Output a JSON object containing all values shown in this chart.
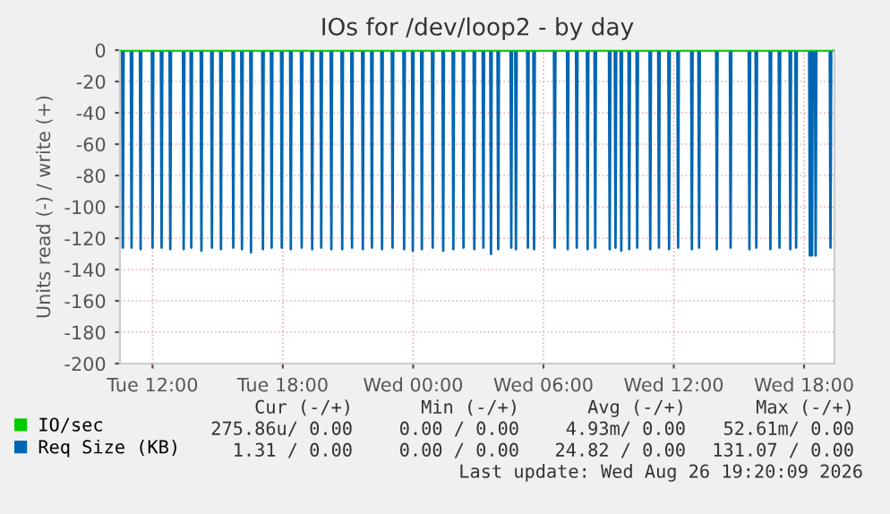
{
  "chart_data": {
    "type": "line",
    "title": "IOs for /dev/loop2 - by day",
    "ylabel": "Units read (-) / write (+)",
    "xlim": [
      "2026-08-25T10:30",
      "2026-08-26T19:24"
    ],
    "xticks": [
      {
        "value": "2026-08-25T12:00",
        "label": "Tue 12:00"
      },
      {
        "value": "2026-08-25T18:00",
        "label": "Tue 18:00"
      },
      {
        "value": "2026-08-26T00:00",
        "label": "Wed 00:00"
      },
      {
        "value": "2026-08-26T06:00",
        "label": "Wed 06:00"
      },
      {
        "value": "2026-08-26T12:00",
        "label": "Wed 12:00"
      },
      {
        "value": "2026-08-26T18:00",
        "label": "Wed 18:00"
      }
    ],
    "ylim": [
      -200,
      0
    ],
    "yticks": [
      -200,
      -180,
      -160,
      -140,
      -120,
      -100,
      -80,
      -60,
      -40,
      -20,
      0
    ],
    "grid": true,
    "legend": "bottom left",
    "marker": "none",
    "line_style": "solid",
    "series": [
      {
        "name": "IO/sec",
        "color": "#00cc00",
        "x": [
          "2026-08-25T10:30",
          "2026-08-26T19:24"
        ],
        "values": [
          0,
          0
        ]
      },
      {
        "name": "Req Size (KB)",
        "color": "#0066b3",
        "x": [
          "2026-08-25T10:36",
          "2026-08-25T10:38",
          "2026-08-25T10:40",
          "2026-08-25T11:00",
          "2026-08-25T11:02",
          "2026-08-25T11:04",
          "2026-08-25T11:25",
          "2026-08-25T11:27",
          "2026-08-25T11:29",
          "2026-08-25T11:58",
          "2026-08-25T12:00",
          "2026-08-25T12:02",
          "2026-08-25T12:23",
          "2026-08-25T12:25",
          "2026-08-25T12:27",
          "2026-08-25T12:47",
          "2026-08-25T12:49",
          "2026-08-25T12:51",
          "2026-08-25T13:24",
          "2026-08-25T13:26",
          "2026-08-25T13:28",
          "2026-08-25T13:45",
          "2026-08-25T13:47",
          "2026-08-25T13:49",
          "2026-08-25T14:13",
          "2026-08-25T14:15",
          "2026-08-25T14:17",
          "2026-08-25T14:42",
          "2026-08-25T14:44",
          "2026-08-25T14:46",
          "2026-08-25T15:07",
          "2026-08-25T15:09",
          "2026-08-25T15:11",
          "2026-08-25T15:41",
          "2026-08-25T15:43",
          "2026-08-25T15:45",
          "2026-08-25T16:05",
          "2026-08-25T16:07",
          "2026-08-25T16:09",
          "2026-08-25T16:30",
          "2026-08-25T16:32",
          "2026-08-25T16:34",
          "2026-08-25T17:03",
          "2026-08-25T17:05",
          "2026-08-25T17:07",
          "2026-08-25T17:27",
          "2026-08-25T17:29",
          "2026-08-25T17:31",
          "2026-08-25T17:55",
          "2026-08-25T17:57",
          "2026-08-25T17:59",
          "2026-08-25T18:20",
          "2026-08-25T18:22",
          "2026-08-25T18:24",
          "2026-08-25T18:50",
          "2026-08-25T18:52",
          "2026-08-25T18:54",
          "2026-08-25T19:19",
          "2026-08-25T19:21",
          "2026-08-25T19:23",
          "2026-08-25T19:44",
          "2026-08-25T19:46",
          "2026-08-25T19:48",
          "2026-08-25T20:12",
          "2026-08-25T20:14",
          "2026-08-25T20:16",
          "2026-08-25T20:42",
          "2026-08-25T20:44",
          "2026-08-25T20:46",
          "2026-08-25T21:09",
          "2026-08-25T21:11",
          "2026-08-25T21:13",
          "2026-08-25T21:39",
          "2026-08-25T21:41",
          "2026-08-25T21:43",
          "2026-08-25T22:04",
          "2026-08-25T22:06",
          "2026-08-25T22:08",
          "2026-08-25T22:32",
          "2026-08-25T22:34",
          "2026-08-25T22:36",
          "2026-08-25T23:01",
          "2026-08-25T23:03",
          "2026-08-25T23:05",
          "2026-08-25T23:33",
          "2026-08-25T23:35",
          "2026-08-25T23:37",
          "2026-08-25T23:57",
          "2026-08-25T23:59",
          "2026-08-26T00:01",
          "2026-08-26T00:22",
          "2026-08-26T00:24",
          "2026-08-26T00:26",
          "2026-08-26T00:52",
          "2026-08-26T00:54",
          "2026-08-26T00:56",
          "2026-08-26T01:21",
          "2026-08-26T01:23",
          "2026-08-26T01:25",
          "2026-08-26T01:49",
          "2026-08-26T01:51",
          "2026-08-26T01:53",
          "2026-08-26T02:17",
          "2026-08-26T02:19",
          "2026-08-26T02:21",
          "2026-08-26T02:47",
          "2026-08-26T02:49",
          "2026-08-26T02:51",
          "2026-08-26T03:12",
          "2026-08-26T03:14",
          "2026-08-26T03:16",
          "2026-08-26T03:33",
          "2026-08-26T03:35",
          "2026-08-26T03:37",
          "2026-08-26T03:53",
          "2026-08-26T03:55",
          "2026-08-26T03:57",
          "2026-08-26T04:29",
          "2026-08-26T04:31",
          "2026-08-26T04:33",
          "2026-08-26T04:42",
          "2026-08-26T04:44",
          "2026-08-26T04:46",
          "2026-08-26T05:15",
          "2026-08-26T05:17",
          "2026-08-26T05:19",
          "2026-08-26T05:32",
          "2026-08-26T05:34",
          "2026-08-26T05:36",
          "2026-08-26T06:29",
          "2026-08-26T06:31",
          "2026-08-26T06:33",
          "2026-08-26T07:05",
          "2026-08-26T07:07",
          "2026-08-26T07:09",
          "2026-08-26T07:30",
          "2026-08-26T07:32",
          "2026-08-26T07:34",
          "2026-08-26T08:00",
          "2026-08-26T08:02",
          "2026-08-26T08:04",
          "2026-08-26T08:21",
          "2026-08-26T08:23",
          "2026-08-26T08:25",
          "2026-08-26T09:01",
          "2026-08-26T09:03",
          "2026-08-26T09:05",
          "2026-08-26T09:17",
          "2026-08-26T09:19",
          "2026-08-26T09:21",
          "2026-08-26T09:33",
          "2026-08-26T09:35",
          "2026-08-26T09:37",
          "2026-08-26T09:55",
          "2026-08-26T09:57",
          "2026-08-26T09:59",
          "2026-08-26T10:17",
          "2026-08-26T10:19",
          "2026-08-26T10:21",
          "2026-08-26T10:53",
          "2026-08-26T10:55",
          "2026-08-26T10:57",
          "2026-08-26T11:17",
          "2026-08-26T11:19",
          "2026-08-26T11:21",
          "2026-08-26T11:45",
          "2026-08-26T11:47",
          "2026-08-26T11:49",
          "2026-08-26T12:10",
          "2026-08-26T12:12",
          "2026-08-26T12:14",
          "2026-08-26T12:48",
          "2026-08-26T12:50",
          "2026-08-26T12:52",
          "2026-08-26T13:08",
          "2026-08-26T13:10",
          "2026-08-26T13:12",
          "2026-08-26T13:57",
          "2026-08-26T13:59",
          "2026-08-26T14:01",
          "2026-08-26T14:35",
          "2026-08-26T14:37",
          "2026-08-26T14:39",
          "2026-08-26T15:27",
          "2026-08-26T15:29",
          "2026-08-26T15:31",
          "2026-08-26T15:46",
          "2026-08-26T15:48",
          "2026-08-26T15:50",
          "2026-08-26T16:25",
          "2026-08-26T16:27",
          "2026-08-26T16:29",
          "2026-08-26T16:50",
          "2026-08-26T16:52",
          "2026-08-26T16:54",
          "2026-08-26T17:20",
          "2026-08-26T17:22",
          "2026-08-26T17:24",
          "2026-08-26T17:36",
          "2026-08-26T17:38",
          "2026-08-26T17:40",
          "2026-08-26T18:14",
          "2026-08-26T18:16",
          "2026-08-26T18:18",
          "2026-08-26T18:20",
          "2026-08-26T18:22",
          "2026-08-26T18:24",
          "2026-08-26T18:30",
          "2026-08-26T18:32",
          "2026-08-26T18:34",
          "2026-08-26T19:11",
          "2026-08-26T19:13",
          "2026-08-26T19:15"
        ],
        "values": [
          0,
          -126,
          0,
          0,
          -126,
          0,
          0,
          -127,
          0,
          0,
          -126,
          0,
          0,
          -126,
          0,
          0,
          -127,
          0,
          0,
          -127,
          0,
          0,
          -126,
          0,
          0,
          -128,
          0,
          0,
          -126,
          0,
          0,
          -127,
          0,
          0,
          -126,
          0,
          0,
          -127,
          0,
          0,
          -129,
          0,
          0,
          -127,
          0,
          0,
          -126,
          0,
          0,
          -126,
          0,
          0,
          -127,
          0,
          0,
          -126,
          0,
          0,
          -127,
          0,
          0,
          -126,
          0,
          0,
          -127,
          0,
          0,
          -127,
          0,
          0,
          -126,
          0,
          0,
          -127,
          0,
          0,
          -126,
          0,
          0,
          -127,
          0,
          0,
          -126,
          0,
          0,
          -127,
          0,
          0,
          -128,
          0,
          0,
          -127,
          0,
          0,
          -126,
          0,
          0,
          -128,
          0,
          0,
          -127,
          0,
          0,
          -126,
          0,
          0,
          -127,
          0,
          0,
          -126,
          0,
          0,
          -130,
          0,
          0,
          -127,
          0,
          0,
          -126,
          0,
          0,
          -127,
          0,
          0,
          -126,
          0,
          0,
          -127,
          0,
          0,
          -126,
          0,
          0,
          -127,
          0,
          0,
          -126,
          0,
          0,
          -127,
          0,
          0,
          -126,
          0,
          0,
          -127,
          0,
          0,
          -126,
          0,
          0,
          -128,
          0,
          0,
          -127,
          0,
          0,
          -126,
          0,
          0,
          -127,
          0,
          0,
          -126,
          0,
          0,
          -127,
          0,
          0,
          -126,
          0,
          0,
          -127,
          0,
          0,
          -126,
          0,
          0,
          -127,
          0,
          0,
          -126,
          0,
          0,
          -127,
          0,
          0,
          -126,
          0,
          0,
          -127,
          0,
          0,
          -126,
          0,
          0,
          -127,
          0,
          0,
          -126,
          0,
          0,
          -131,
          0,
          0,
          -131,
          0,
          0,
          -131,
          0,
          0,
          -126,
          0
        ]
      }
    ],
    "annotations": [
      "Cur (-/+)",
      "Min (-/+)",
      "Avg (-/+)",
      "Max (-/+)",
      "275.86u/ 0.00",
      "0.00 / 0.00",
      "4.93m/ 0.00",
      "52.61m/ 0.00",
      "1.31 / 0.00",
      "0.00 / 0.00",
      "24.82 / 0.00",
      "131.07 / 0.00",
      "Last update: Wed Aug 26 19:20:09 2026"
    ]
  }
}
